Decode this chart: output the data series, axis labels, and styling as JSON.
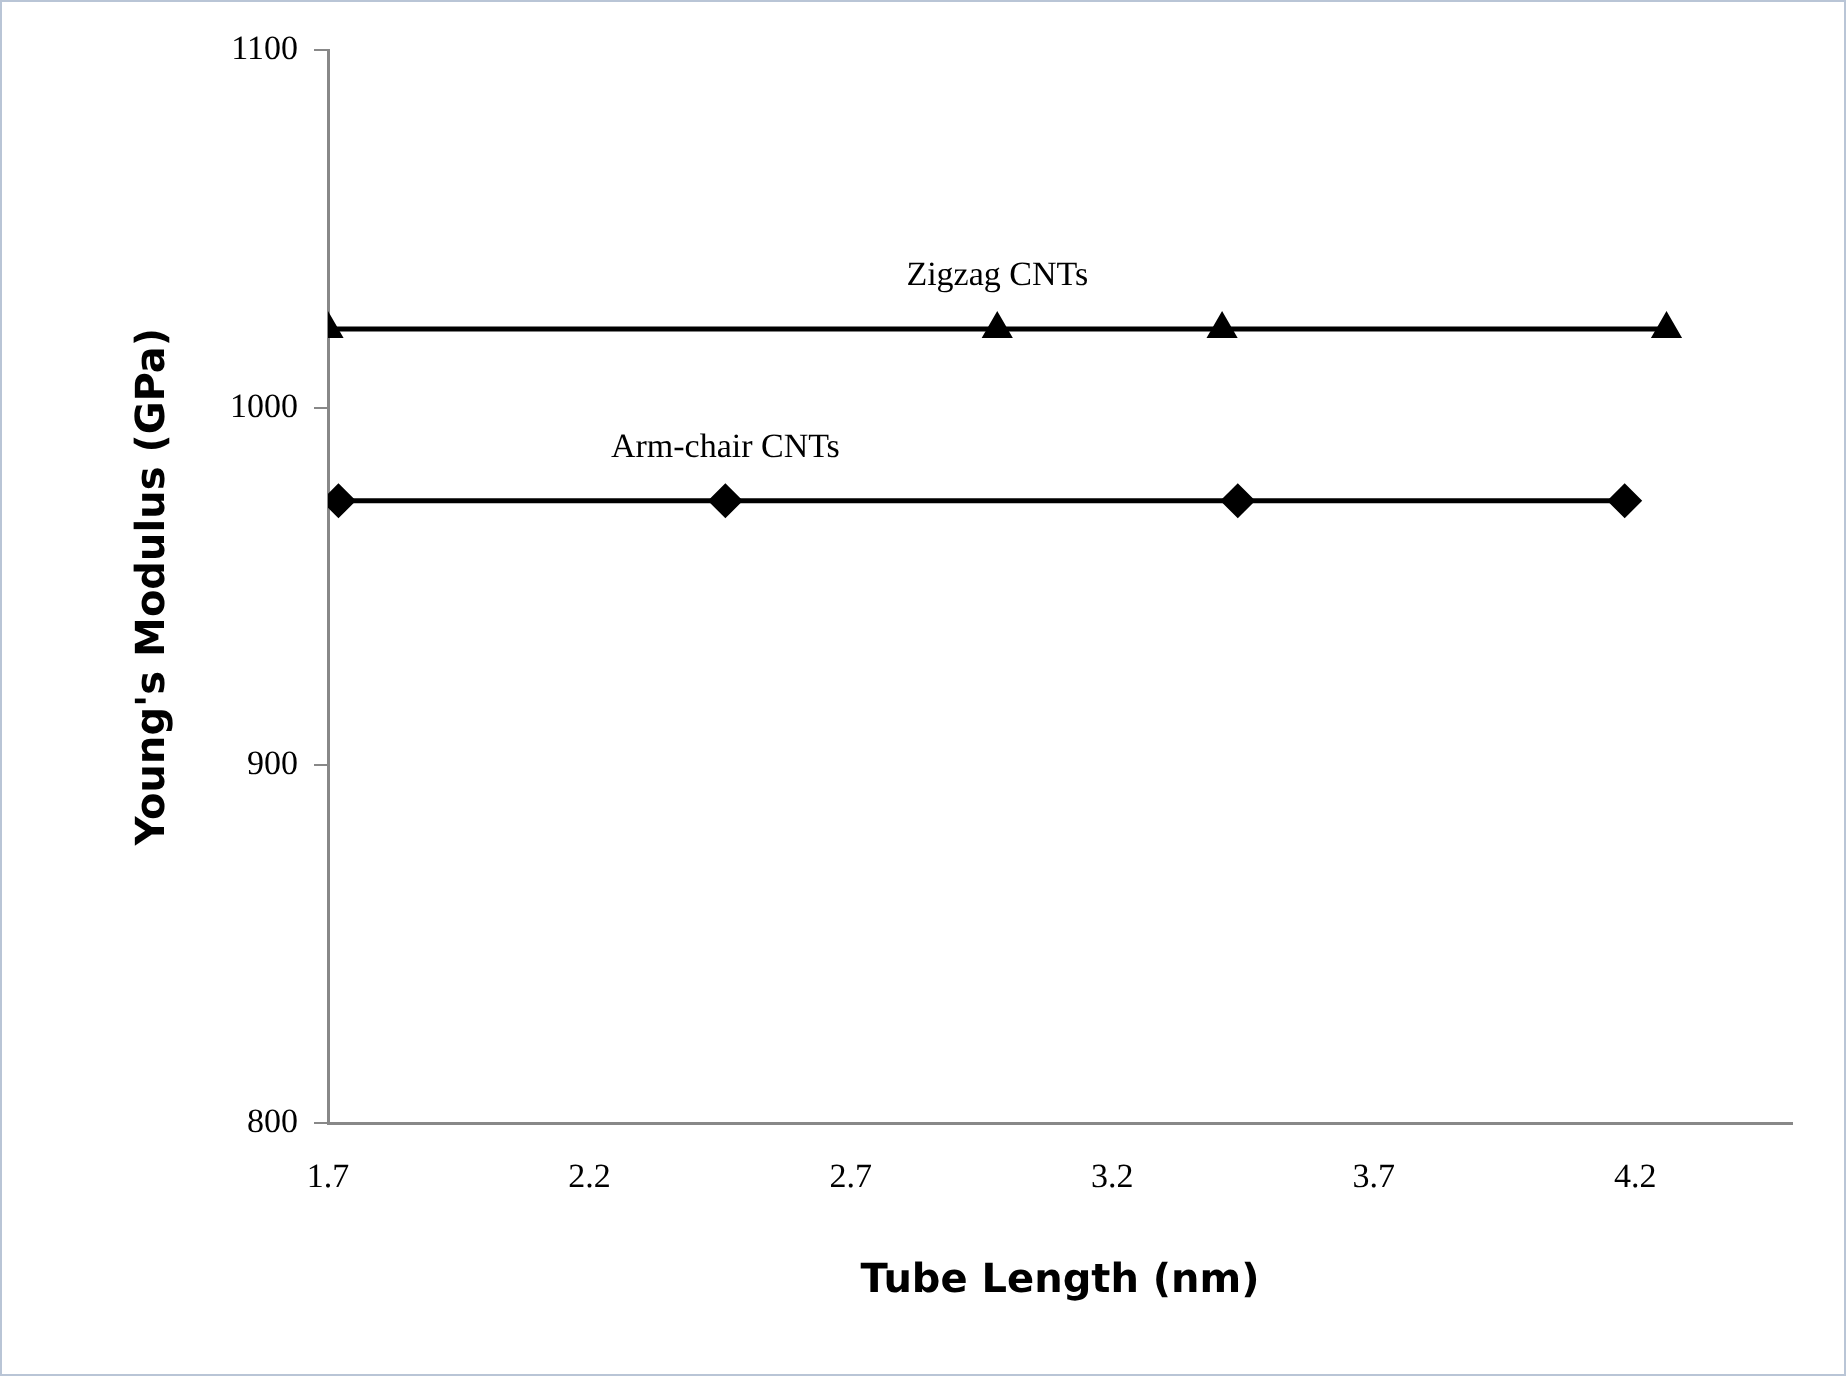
{
  "chart_data": {
    "type": "line",
    "xlabel": "Tube Length (nm)",
    "ylabel": "Young's Modulus (GPa)",
    "xlim": [
      1.7,
      4.5
    ],
    "xticks": [
      1.7,
      2.2,
      2.7,
      3.2,
      3.7,
      4.2
    ],
    "ylim": [
      800,
      1100
    ],
    "yticks": [
      800,
      900,
      1000,
      1100
    ],
    "grid": false,
    "legend": false,
    "line_style": "solid",
    "series": [
      {
        "name": "Zigzag CNTs",
        "color": "#000000",
        "marker": "triangle",
        "x": [
          1.7,
          2.98,
          3.41,
          4.26
        ],
        "values": [
          1022,
          1022,
          1022,
          1022
        ]
      },
      {
        "name": "Arm-chair CNTs",
        "color": "#000000",
        "marker": "diamond",
        "x": [
          1.72,
          2.46,
          3.44,
          4.18
        ],
        "values": [
          974,
          974,
          974,
          974
        ]
      }
    ]
  }
}
